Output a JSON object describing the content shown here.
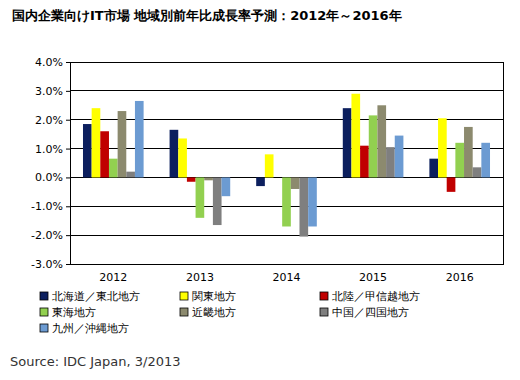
{
  "chart_data": {
    "type": "bar",
    "title": "国内企業向けIT市場 地域別前年比成長率予測：2012年～2016年",
    "source": "Source: IDC Japan, 3/2013",
    "categories": [
      "2012",
      "2013",
      "2014",
      "2015",
      "2016"
    ],
    "series": [
      {
        "name": "北海道／東北地方",
        "color": "#0c1f5e",
        "values": [
          1.85,
          1.65,
          -0.3,
          2.4,
          0.65
        ]
      },
      {
        "name": "関東地方",
        "color": "#ffff00",
        "values": [
          2.4,
          1.35,
          0.8,
          2.9,
          2.05
        ]
      },
      {
        "name": "北陸／甲信越地方",
        "color": "#c00000",
        "values": [
          1.6,
          -0.15,
          0.0,
          1.1,
          -0.5
        ]
      },
      {
        "name": "東海地方",
        "color": "#92d050",
        "values": [
          0.65,
          -1.4,
          -1.7,
          2.15,
          1.2
        ]
      },
      {
        "name": "近畿地方",
        "color": "#8c8a6e",
        "values": [
          2.3,
          -0.1,
          -0.4,
          2.5,
          1.75
        ]
      },
      {
        "name": "中国／四国地方",
        "color": "#7f7f7f",
        "values": [
          0.2,
          -1.65,
          -2.05,
          1.05,
          0.35
        ]
      },
      {
        "name": "九州／沖縄地方",
        "color": "#6c9bd2",
        "values": [
          2.65,
          -0.65,
          -1.7,
          1.45,
          1.2
        ]
      }
    ],
    "ylim": [
      -3,
      4
    ],
    "yticks": [
      {
        "value": -3,
        "label": "-3.0%"
      },
      {
        "value": -2,
        "label": "-2.0%"
      },
      {
        "value": -1,
        "label": "-1.0%"
      },
      {
        "value": 0,
        "label": "0.0%"
      },
      {
        "value": 1,
        "label": "1.0%"
      },
      {
        "value": 2,
        "label": "2.0%"
      },
      {
        "value": 3,
        "label": "3.0%"
      },
      {
        "value": 4,
        "label": "4.0%"
      }
    ],
    "grid": true,
    "legend": "bottom"
  }
}
